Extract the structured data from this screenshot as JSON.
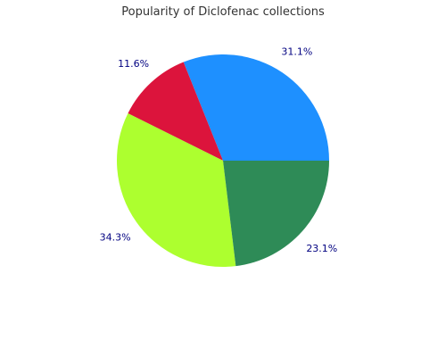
{
  "chart_data": {
    "type": "pie",
    "title": "Popularity of Diclofenac collections",
    "slices": [
      {
        "value": 31.1,
        "label": "31.1%",
        "color": "#1E90FF"
      },
      {
        "value": 11.6,
        "label": "11.6%",
        "color": "#DC143C"
      },
      {
        "value": 34.3,
        "label": "34.3%",
        "color": "#ADFF2F"
      },
      {
        "value": 23.1,
        "label": "23.1%",
        "color": "#2E8B57"
      }
    ],
    "legend": "none",
    "label_color": "#000080"
  }
}
